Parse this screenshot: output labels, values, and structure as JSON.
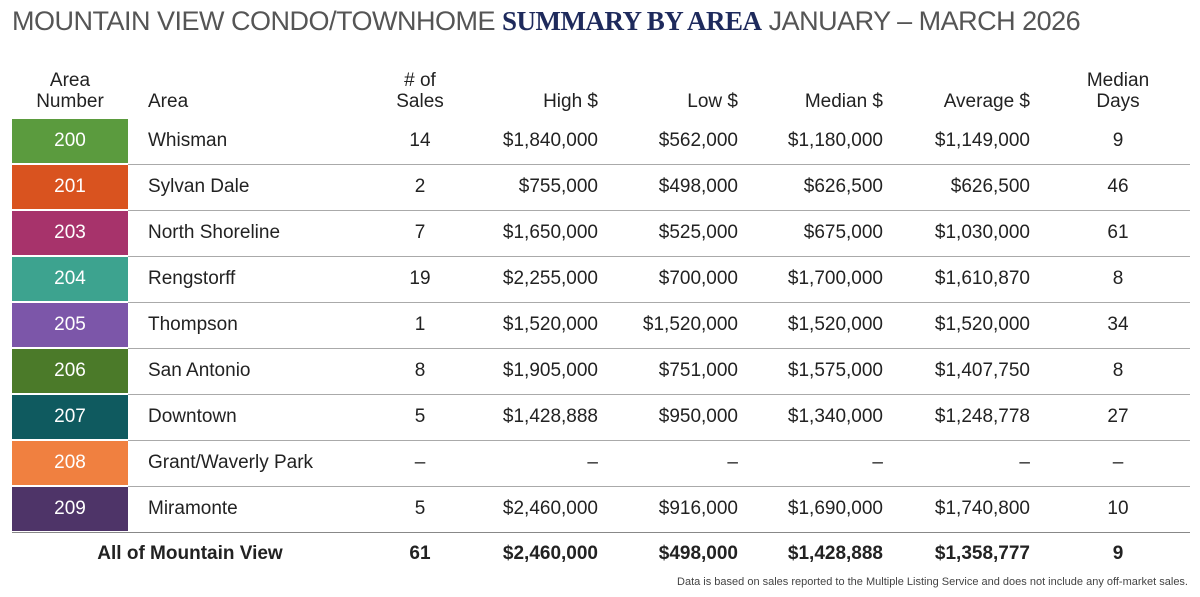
{
  "title": {
    "lead": "MOUNTAIN VIEW CONDO/TOWNHOME",
    "highlight": "SUMMARY BY AREA",
    "period": "JANUARY – MARCH 2026"
  },
  "table": {
    "headers": [
      "Area Number",
      "Area",
      "# of Sales",
      "High $",
      "Low $",
      "Median $",
      "Average $",
      "Median Days"
    ],
    "rows": [
      [
        "200",
        "Whisman",
        "14",
        "$1,840,000",
        "$562,000",
        "$1,180,000",
        "$1,149,000",
        "9"
      ],
      [
        "201",
        "Sylvan Dale",
        "2",
        "$755,000",
        "$498,000",
        "$626,500",
        "$626,500",
        "46"
      ],
      [
        "203",
        "North Shoreline",
        "7",
        "$1,650,000",
        "$525,000",
        "$675,000",
        "$1,030,000",
        "61"
      ],
      [
        "204",
        "Rengstorff",
        "19",
        "$2,255,000",
        "$700,000",
        "$1,700,000",
        "$1,610,870",
        "8"
      ],
      [
        "205",
        "Thompson",
        "1",
        "$1,520,000",
        "$1,520,000",
        "$1,520,000",
        "$1,520,000",
        "34"
      ],
      [
        "206",
        "San Antonio",
        "8",
        "$1,905,000",
        "$751,000",
        "$1,575,000",
        "$1,407,750",
        "8"
      ],
      [
        "207",
        "Downtown",
        "5",
        "$1,428,888",
        "$950,000",
        "$1,340,000",
        "$1,248,778",
        "27"
      ],
      [
        "208",
        "Grant/Waverly Park",
        "–",
        "–",
        "–",
        "–",
        "–",
        "–"
      ],
      [
        "209",
        "Miramonte",
        "5",
        "$2,460,000",
        "$916,000",
        "$1,690,000",
        "$1,740,800",
        "10"
      ]
    ],
    "row_colors": [
      "#5b9b3e",
      "#d9531f",
      "#a7336b",
      "#3da38f",
      "#7c56a9",
      "#4b7a29",
      "#0f5a5f",
      "#f08040",
      "#4e3468"
    ],
    "total": [
      "All of Mountain View",
      "61",
      "$2,460,000",
      "$498,000",
      "$1,428,888",
      "$1,358,777",
      "9"
    ]
  },
  "note": "Data is based on sales reported to the Multiple Listing Service and does not include any off-market sales."
}
